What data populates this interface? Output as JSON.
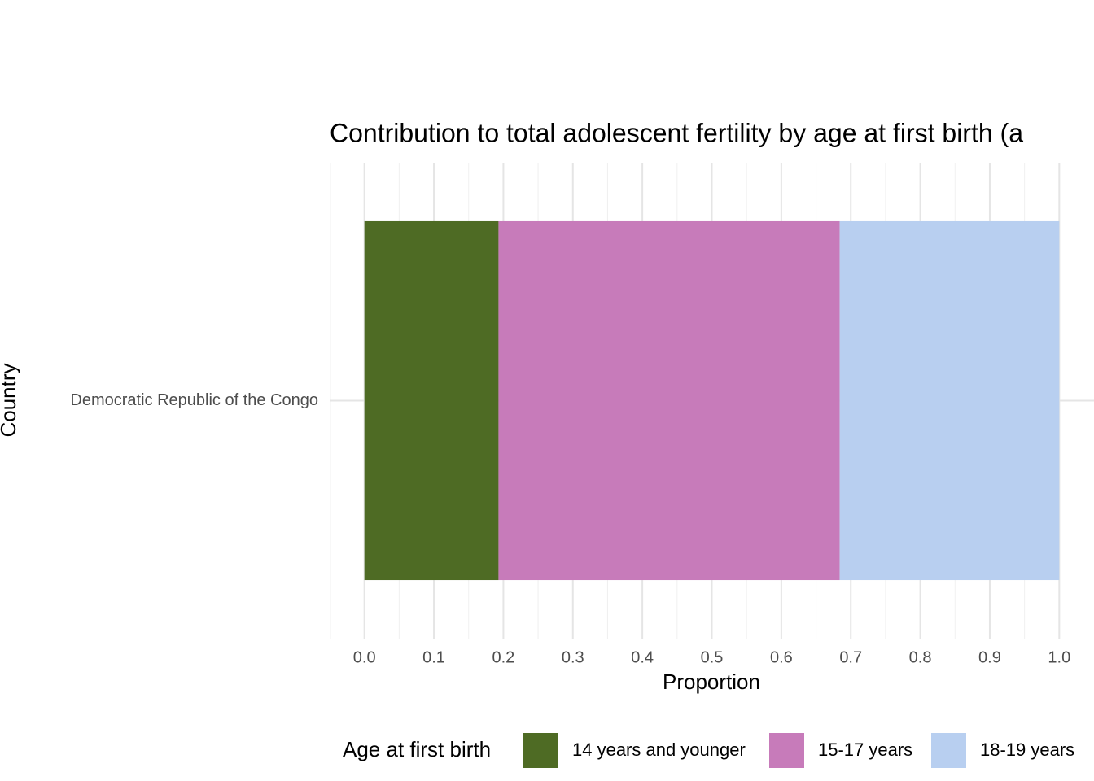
{
  "chart_data": {
    "type": "stacked_bar_horizontal",
    "title": "Contribution to total adolescent fertility by age at first birth (a",
    "xlabel": "Proportion",
    "ylabel": "Country",
    "categories": [
      "Democratic Republic of the Congo"
    ],
    "series": [
      {
        "name": "14 years and younger",
        "color": "#4e6b24",
        "values": [
          0.193
        ]
      },
      {
        "name": "15-17 years",
        "color": "#c77bba",
        "values": [
          0.491
        ]
      },
      {
        "name": "18-19 years",
        "color": "#b8cff0",
        "values": [
          0.316
        ]
      }
    ],
    "legend_title": "Age at first birth",
    "legend_position": "bottom",
    "xlim": [
      -0.05,
      1.05
    ],
    "xticks": [
      {
        "value": 0,
        "label": "0.0"
      },
      0.1,
      0.2,
      0.3,
      0.4,
      0.5,
      0.6,
      0.7,
      0.8,
      0.9,
      {
        "value": 1,
        "label": "1.0"
      }
    ],
    "grid": true
  }
}
